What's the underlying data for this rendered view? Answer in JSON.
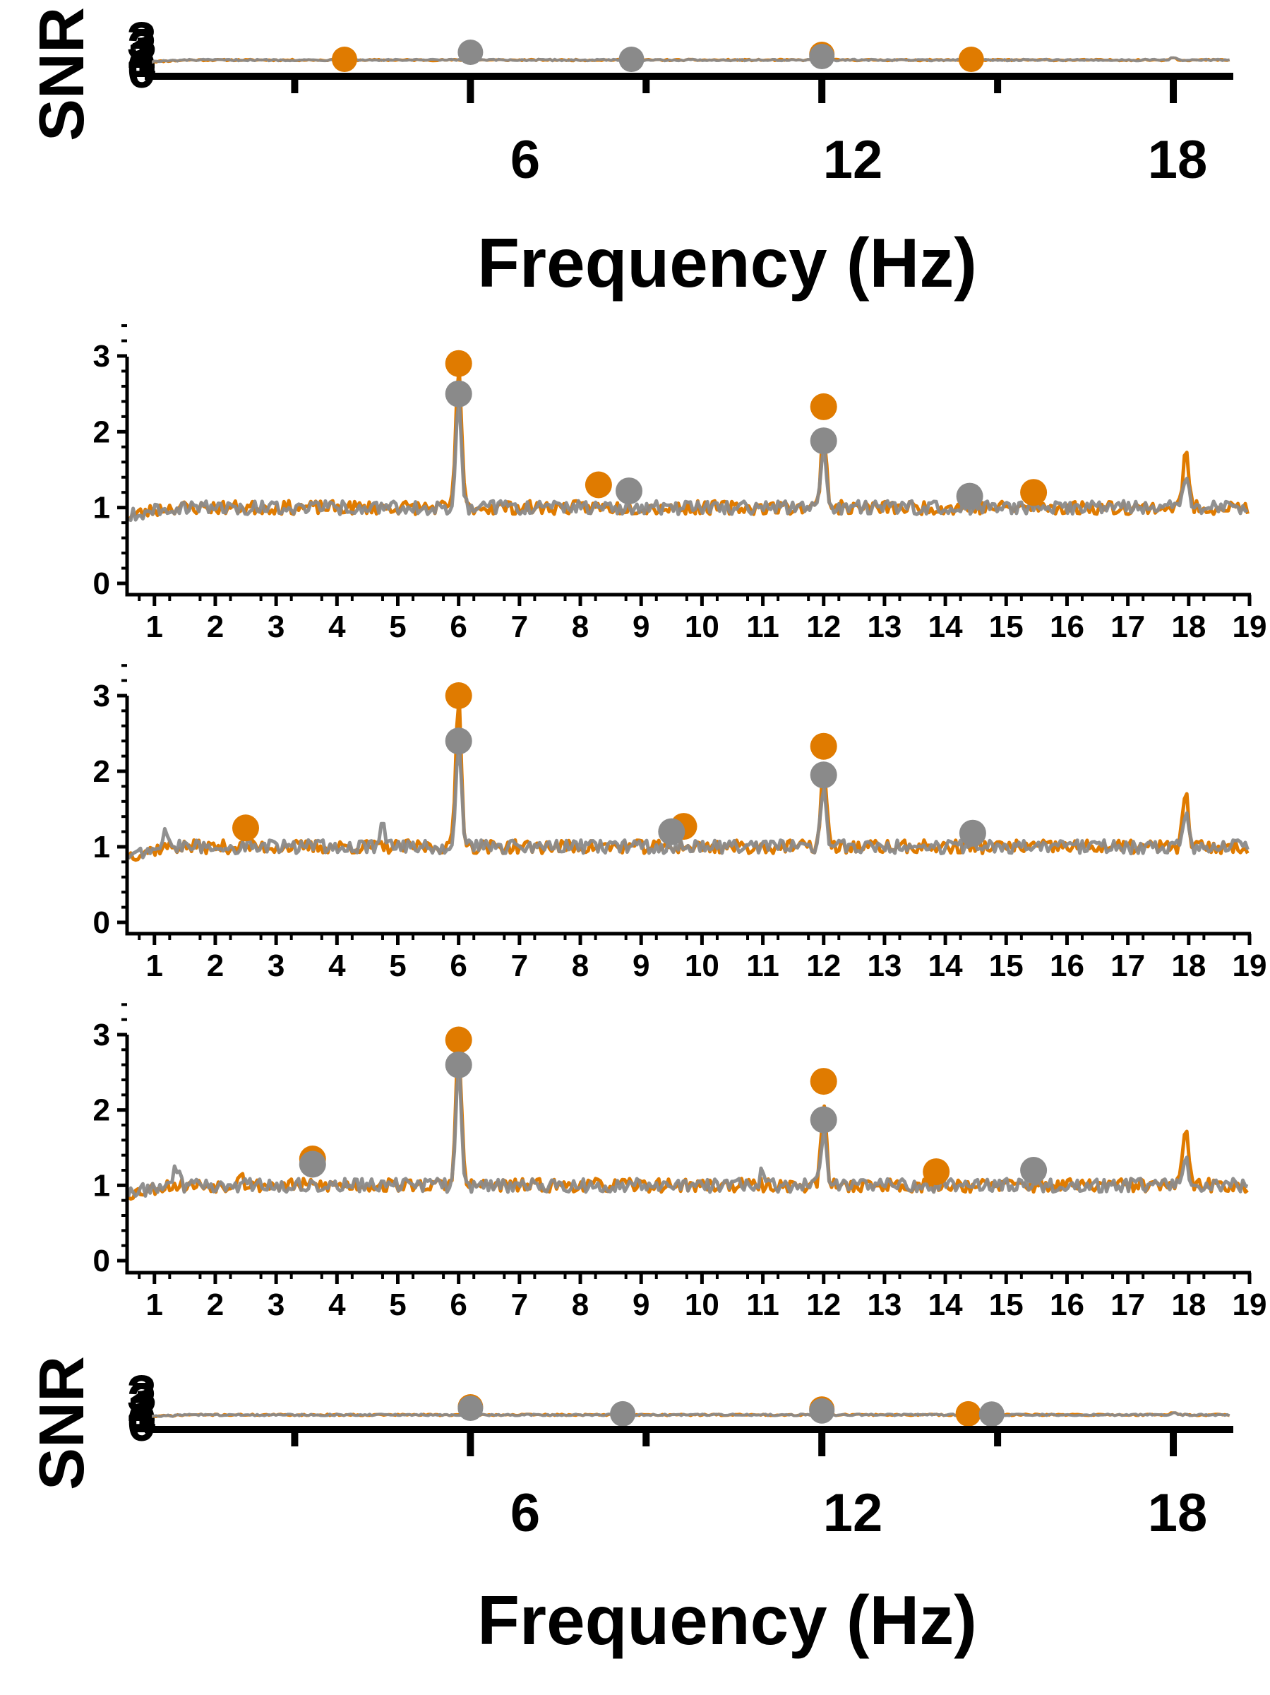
{
  "colors": {
    "orange": "#E07B00",
    "gray": "#8A8A8A",
    "axis": "#000000",
    "background": "#FFFFFF"
  },
  "top_panel": {
    "ylabel": "SNR",
    "y_tick_labels": [
      "3",
      "2",
      "1",
      "0"
    ],
    "x_tick_labels": [
      "6",
      "12",
      "18"
    ],
    "xlabel": "Frequency (Hz)"
  },
  "bottom_panel": {
    "ylabel": "SNR",
    "y_tick_labels": [
      "3",
      "2",
      "1",
      "0"
    ],
    "x_tick_labels": [
      "6",
      "12",
      "18"
    ],
    "xlabel": "Frequency (Hz)"
  },
  "chart_data": [
    {
      "type": "line",
      "title": "",
      "xlabel": "Frequency (Hz)",
      "ylabel": "SNR",
      "xlim": [
        0.5,
        19
      ],
      "ylim": [
        -0.1,
        3.6
      ],
      "x_ticks": [
        6,
        12,
        18
      ],
      "y_ticks": [
        0,
        1,
        2,
        3
      ],
      "series": [
        {
          "color": "#E07B00",
          "baseline": 1.0,
          "peaks": [
            [
              6,
              1.45
            ],
            [
              12,
              1.35
            ],
            [
              18,
              1.2
            ]
          ]
        },
        {
          "color": "#8A8A8A",
          "baseline": 1.0,
          "peaks": [
            [
              6,
              1.4
            ],
            [
              12,
              1.25
            ],
            [
              18,
              1.15
            ]
          ]
        }
      ],
      "markers": [
        {
          "color": "#E07B00",
          "x": 3.85,
          "y": 1.05
        },
        {
          "color": "#8A8A8A",
          "x": 6.0,
          "y": 1.55
        },
        {
          "color": "#8A8A8A",
          "x": 8.75,
          "y": 1.05
        },
        {
          "color": "#E07B00",
          "x": 12.0,
          "y": 1.4
        },
        {
          "color": "#8A8A8A",
          "x": 12.0,
          "y": 1.25
        },
        {
          "color": "#E07B00",
          "x": 14.55,
          "y": 1.05
        }
      ]
    },
    {
      "type": "line",
      "title": "",
      "xlabel": "",
      "ylabel": "",
      "xlim": [
        0.55,
        19
      ],
      "ylim": [
        -0.1,
        3.7
      ],
      "x_ticks": [
        1,
        2,
        3,
        4,
        5,
        6,
        7,
        8,
        9,
        10,
        11,
        12,
        13,
        14,
        15,
        16,
        17,
        18,
        19
      ],
      "x_tick_labels": [
        "1",
        "2",
        "3",
        "4",
        "5",
        "6",
        "7",
        "8",
        "9",
        "10",
        "11",
        "12",
        "13",
        "14",
        "15",
        "16",
        "17",
        "18",
        "19"
      ],
      "y_ticks": [
        0,
        1,
        2,
        3
      ],
      "y_tick_labels": [
        "0",
        "1",
        "2",
        "3"
      ],
      "series": [
        {
          "color": "#E07B00",
          "baseline": 1.0,
          "peaks": [
            [
              6,
              2.9
            ],
            [
              12,
              2.0
            ],
            [
              17.95,
              1.75
            ]
          ]
        },
        {
          "color": "#8A8A8A",
          "baseline": 1.0,
          "peaks": [
            [
              6,
              2.5
            ],
            [
              12,
              1.75
            ],
            [
              17.95,
              1.4
            ]
          ]
        }
      ],
      "markers": [
        {
          "color": "#E07B00",
          "x": 6.0,
          "y": 2.9
        },
        {
          "color": "#8A8A8A",
          "x": 6.0,
          "y": 2.5
        },
        {
          "color": "#E07B00",
          "x": 8.3,
          "y": 1.3
        },
        {
          "color": "#8A8A8A",
          "x": 8.8,
          "y": 1.22
        },
        {
          "color": "#E07B00",
          "x": 12.0,
          "y": 2.33
        },
        {
          "color": "#8A8A8A",
          "x": 12.0,
          "y": 1.88
        },
        {
          "color": "#8A8A8A",
          "x": 14.4,
          "y": 1.15
        },
        {
          "color": "#E07B00",
          "x": 15.45,
          "y": 1.2
        }
      ]
    },
    {
      "type": "line",
      "title": "",
      "xlabel": "",
      "ylabel": "",
      "xlim": [
        0.55,
        19
      ],
      "ylim": [
        -0.1,
        3.7
      ],
      "x_ticks": [
        1,
        2,
        3,
        4,
        5,
        6,
        7,
        8,
        9,
        10,
        11,
        12,
        13,
        14,
        15,
        16,
        17,
        18,
        19
      ],
      "x_tick_labels": [
        "1",
        "2",
        "3",
        "4",
        "5",
        "6",
        "7",
        "8",
        "9",
        "10",
        "11",
        "12",
        "13",
        "14",
        "15",
        "16",
        "17",
        "18",
        "19"
      ],
      "y_ticks": [
        0,
        1,
        2,
        3
      ],
      "y_tick_labels": [
        "0",
        "1",
        "2",
        "3"
      ],
      "series": [
        {
          "color": "#E07B00",
          "baseline": 1.0,
          "peaks": [
            [
              6,
              3.0
            ],
            [
              12,
              2.05
            ],
            [
              17.95,
              1.7
            ]
          ]
        },
        {
          "color": "#8A8A8A",
          "baseline": 1.0,
          "peaks": [
            [
              6,
              2.4
            ],
            [
              12,
              1.8
            ],
            [
              17.95,
              1.45
            ],
            [
              1.2,
              1.2
            ],
            [
              4.75,
              1.25
            ]
          ]
        }
      ],
      "markers": [
        {
          "color": "#E07B00",
          "x": 2.5,
          "y": 1.25
        },
        {
          "color": "#E07B00",
          "x": 6.0,
          "y": 3.0
        },
        {
          "color": "#8A8A8A",
          "x": 6.0,
          "y": 2.4
        },
        {
          "color": "#E07B00",
          "x": 9.7,
          "y": 1.27
        },
        {
          "color": "#8A8A8A",
          "x": 9.5,
          "y": 1.2
        },
        {
          "color": "#E07B00",
          "x": 12.0,
          "y": 2.33
        },
        {
          "color": "#8A8A8A",
          "x": 12.0,
          "y": 1.95
        },
        {
          "color": "#8A8A8A",
          "x": 14.45,
          "y": 1.18
        }
      ]
    },
    {
      "type": "line",
      "title": "",
      "xlabel": "",
      "ylabel": "",
      "xlim": [
        0.55,
        19
      ],
      "ylim": [
        -0.1,
        3.7
      ],
      "x_ticks": [
        1,
        2,
        3,
        4,
        5,
        6,
        7,
        8,
        9,
        10,
        11,
        12,
        13,
        14,
        15,
        16,
        17,
        18,
        19
      ],
      "x_tick_labels": [
        "1",
        "2",
        "3",
        "4",
        "5",
        "6",
        "7",
        "8",
        "9",
        "10",
        "11",
        "12",
        "13",
        "14",
        "15",
        "16",
        "17",
        "18",
        "19"
      ],
      "y_ticks": [
        0,
        1,
        2,
        3
      ],
      "y_tick_labels": [
        "0",
        "1",
        "2",
        "3"
      ],
      "series": [
        {
          "color": "#E07B00",
          "baseline": 1.0,
          "peaks": [
            [
              6,
              2.9
            ],
            [
              12,
              2.0
            ],
            [
              17.95,
              1.75
            ],
            [
              2.4,
              1.2
            ]
          ]
        },
        {
          "color": "#8A8A8A",
          "baseline": 1.0,
          "peaks": [
            [
              6,
              2.6
            ],
            [
              12,
              1.75
            ],
            [
              17.95,
              1.4
            ],
            [
              1.35,
              1.25
            ],
            [
              11.0,
              1.2
            ]
          ]
        }
      ],
      "markers": [
        {
          "color": "#E07B00",
          "x": 3.6,
          "y": 1.35
        },
        {
          "color": "#8A8A8A",
          "x": 3.6,
          "y": 1.28
        },
        {
          "color": "#E07B00",
          "x": 6.0,
          "y": 2.93
        },
        {
          "color": "#8A8A8A",
          "x": 6.0,
          "y": 2.6
        },
        {
          "color": "#E07B00",
          "x": 12.0,
          "y": 2.38
        },
        {
          "color": "#8A8A8A",
          "x": 12.0,
          "y": 1.87
        },
        {
          "color": "#E07B00",
          "x": 13.85,
          "y": 1.18
        },
        {
          "color": "#8A8A8A",
          "x": 15.45,
          "y": 1.2
        }
      ]
    },
    {
      "type": "line",
      "title": "",
      "xlabel": "Frequency (Hz)",
      "ylabel": "SNR",
      "xlim": [
        0.5,
        19
      ],
      "ylim": [
        -0.1,
        3.6
      ],
      "x_ticks": [
        6,
        12,
        18
      ],
      "y_ticks": [
        0,
        1,
        2,
        3
      ],
      "series": [
        {
          "color": "#E07B00",
          "baseline": 1.0,
          "peaks": [
            [
              6,
              1.45
            ],
            [
              12,
              1.35
            ],
            [
              18,
              1.2
            ]
          ]
        },
        {
          "color": "#8A8A8A",
          "baseline": 1.0,
          "peaks": [
            [
              6,
              1.35
            ],
            [
              12,
              1.25
            ],
            [
              18,
              1.15
            ]
          ]
        }
      ],
      "markers": [
        {
          "color": "#E07B00",
          "x": 6.0,
          "y": 1.55
        },
        {
          "color": "#8A8A8A",
          "x": 6.0,
          "y": 1.45
        },
        {
          "color": "#8A8A8A",
          "x": 8.6,
          "y": 1.07
        },
        {
          "color": "#E07B00",
          "x": 12.0,
          "y": 1.4
        },
        {
          "color": "#8A8A8A",
          "x": 12.0,
          "y": 1.27
        },
        {
          "color": "#E07B00",
          "x": 14.5,
          "y": 1.07
        },
        {
          "color": "#8A8A8A",
          "x": 14.9,
          "y": 1.05
        }
      ]
    }
  ]
}
